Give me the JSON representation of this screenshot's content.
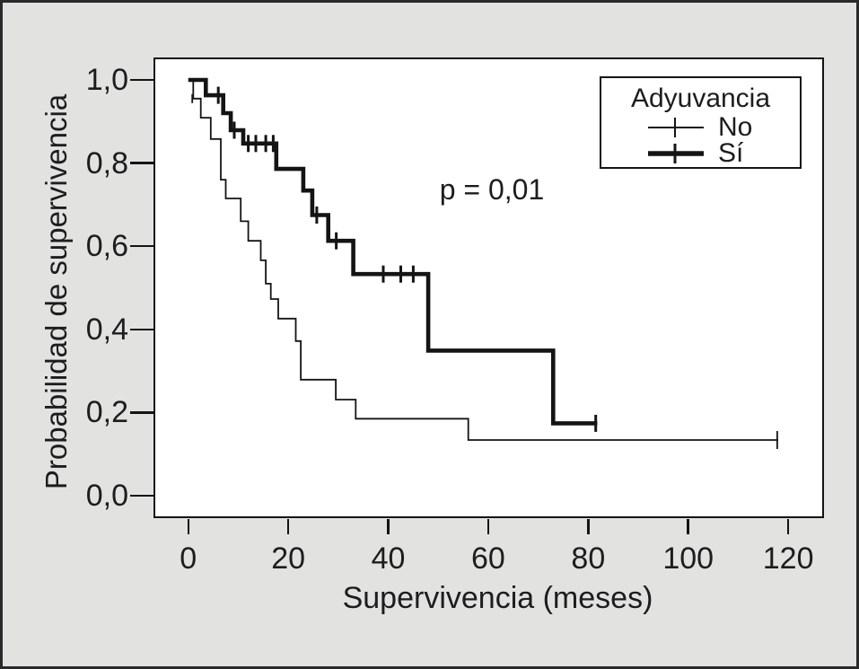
{
  "chart_data": {
    "type": "line",
    "subtype": "kaplan_meier_step",
    "title": "",
    "xlabel": "Supervivencia (meses)",
    "ylabel": "Probabilidad de supervivencia",
    "xlim": [
      -6.6,
      126.8
    ],
    "ylim": [
      -0.0497,
      1.0497
    ],
    "grid": false,
    "xtick_values": [
      0,
      20,
      40,
      60,
      80,
      100,
      120
    ],
    "xtick_labels": [
      "0",
      "20",
      "40",
      "60",
      "80",
      "100",
      "120"
    ],
    "ytick_values": [
      0.0,
      0.2,
      0.4,
      0.6,
      0.8,
      1.0
    ],
    "ytick_labels": [
      "0,0",
      "0,2",
      "0,4",
      "0,6",
      "0,8",
      "1,0"
    ],
    "annotation": {
      "text": "p = 0,01"
    },
    "legend": {
      "title": "Adyuvancia",
      "position": "top-right",
      "entries": [
        {
          "label": "No",
          "style": "thin"
        },
        {
          "label": "Sí",
          "style": "thick"
        }
      ]
    },
    "series": [
      {
        "name": "No",
        "style": "thin",
        "points": [
          [
            0,
            1.0
          ],
          [
            1,
            0.955
          ],
          [
            2.5,
            0.909
          ],
          [
            4.5,
            0.858
          ],
          [
            6.5,
            0.76
          ],
          [
            7.5,
            0.715
          ],
          [
            10.5,
            0.66
          ],
          [
            12,
            0.613
          ],
          [
            14.5,
            0.566
          ],
          [
            15.5,
            0.51
          ],
          [
            16.5,
            0.473
          ],
          [
            18,
            0.426
          ],
          [
            21.5,
            0.372
          ],
          [
            22.5,
            0.279
          ],
          [
            29.5,
            0.231
          ],
          [
            33.5,
            0.185
          ],
          [
            56,
            0.134
          ]
        ],
        "end_x": 118,
        "censors": [
          [
            0.8,
            0.955,
            10
          ],
          [
            117.8,
            0.134
          ]
        ]
      },
      {
        "name": "Sí",
        "style": "thick",
        "points": [
          [
            0,
            1.0
          ],
          [
            3.5,
            0.963
          ],
          [
            7,
            0.92
          ],
          [
            8.5,
            0.879
          ],
          [
            11,
            0.847
          ],
          [
            17.6,
            0.786
          ],
          [
            23,
            0.734
          ],
          [
            24.8,
            0.675
          ],
          [
            28,
            0.613
          ],
          [
            33,
            0.533
          ],
          [
            48,
            0.349
          ],
          [
            73,
            0.174
          ]
        ],
        "end_x": 81.8,
        "censors": [
          [
            6,
            0.963
          ],
          [
            9.2,
            0.879
          ],
          [
            12,
            0.847
          ],
          [
            13.5,
            0.847
          ],
          [
            15.5,
            0.847
          ],
          [
            17,
            0.847
          ],
          [
            25.7,
            0.675
          ],
          [
            29.6,
            0.613
          ],
          [
            39,
            0.533
          ],
          [
            42.5,
            0.533
          ],
          [
            45,
            0.533
          ],
          [
            81.5,
            0.174
          ]
        ]
      }
    ]
  }
}
